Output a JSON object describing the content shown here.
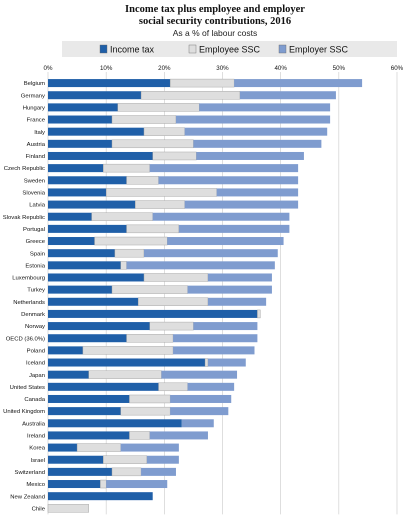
{
  "chart_data": {
    "type": "bar",
    "stacked": true,
    "orientation": "horizontal",
    "title": "Income tax plus employee and employer social security contributions, 2016",
    "subtitle": "As a % of labour costs",
    "x_ticks": [
      "0%",
      "10%",
      "20%",
      "30%",
      "40%",
      "50%",
      "60%"
    ],
    "xlim": [
      0,
      60
    ],
    "legend_position": "top",
    "grid": true,
    "colors": {
      "income_tax": "#1f5fa8",
      "employee_ssc": "#dedede",
      "employer_ssc": "#7f9ccf"
    },
    "categories": [
      "Belgium",
      "Germany",
      "Hungary",
      "France",
      "Italy",
      "Austria",
      "Finland",
      "Czech Republic",
      "Sweden",
      "Slovenia",
      "Latvia",
      "Slovak Republic",
      "Portugal",
      "Greece",
      "Spain",
      "Estonia",
      "Luxembourg",
      "Turkey",
      "Netherlands",
      "Denmark",
      "Norway",
      "OECD (36.0%)",
      "Poland",
      "Iceland",
      "Japan",
      "United States",
      "Canada",
      "United Kingdom",
      "Australia",
      "Ireland",
      "Korea",
      "Israel",
      "Switzerland",
      "Mexico",
      "New Zealand",
      "Chile"
    ],
    "series": [
      {
        "name": "Income tax",
        "key": "income_tax",
        "values": [
          21.0,
          16.0,
          12.0,
          11.0,
          16.5,
          11.0,
          18.0,
          9.5,
          13.5,
          10.0,
          15.0,
          7.5,
          13.5,
          8.0,
          11.5,
          12.5,
          16.5,
          11.0,
          15.5,
          36.0,
          17.5,
          13.5,
          6.0,
          27.0,
          7.0,
          19.0,
          14.0,
          12.5,
          23.0,
          14.0,
          5.0,
          9.5,
          11.0,
          9.0,
          18.0,
          0.0
        ]
      },
      {
        "name": "Employee SSC",
        "key": "employee_ssc",
        "values": [
          11.0,
          17.0,
          14.0,
          11.0,
          7.0,
          14.0,
          7.5,
          8.0,
          5.5,
          19.0,
          8.5,
          10.5,
          9.0,
          12.5,
          5.0,
          1.0,
          11.0,
          13.0,
          12.0,
          0.5,
          7.5,
          8.0,
          15.5,
          0.5,
          12.5,
          5.0,
          7.0,
          8.5,
          0.0,
          3.5,
          7.5,
          7.5,
          5.0,
          1.0,
          0.0,
          7.0
        ]
      },
      {
        "name": "Employer SSC",
        "key": "employer_ssc",
        "values": [
          22.0,
          16.5,
          22.5,
          26.5,
          24.5,
          22.0,
          18.5,
          25.5,
          24.0,
          14.0,
          19.5,
          23.5,
          19.0,
          20.0,
          23.0,
          25.5,
          11.0,
          14.5,
          10.0,
          0.0,
          11.0,
          14.5,
          14.0,
          6.5,
          13.0,
          8.0,
          10.5,
          10.0,
          5.5,
          10.0,
          10.0,
          5.5,
          6.0,
          10.5,
          0.0,
          0.0
        ]
      }
    ]
  }
}
